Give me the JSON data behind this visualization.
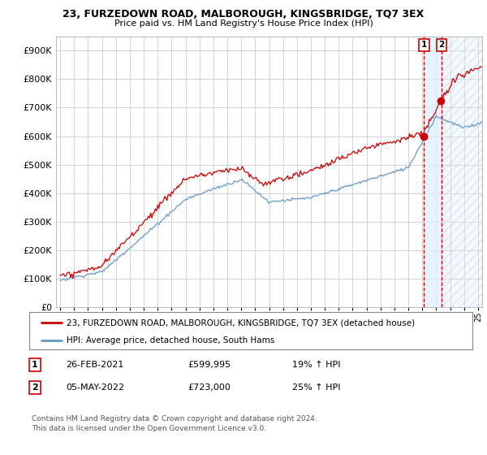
{
  "title": "23, FURZEDOWN ROAD, MALBOROUGH, KINGSBRIDGE, TQ7 3EX",
  "subtitle": "Price paid vs. HM Land Registry's House Price Index (HPI)",
  "ytick_values": [
    0,
    100000,
    200000,
    300000,
    400000,
    500000,
    600000,
    700000,
    800000,
    900000
  ],
  "ylim": [
    0,
    950000
  ],
  "xlim_start": 1994.7,
  "xlim_end": 2025.3,
  "legend_line1": "23, FURZEDOWN ROAD, MALBOROUGH, KINGSBRIDGE, TQ7 3EX (detached house)",
  "legend_line2": "HPI: Average price, detached house, South Hams",
  "sale1_date": "26-FEB-2021",
  "sale1_price": "£599,995",
  "sale1_hpi": "19% ↑ HPI",
  "sale2_date": "05-MAY-2022",
  "sale2_price": "£723,000",
  "sale2_hpi": "25% ↑ HPI",
  "footer": "Contains HM Land Registry data © Crown copyright and database right 2024.\nThis data is licensed under the Open Government Licence v3.0.",
  "line1_color": "#cc0000",
  "line2_color": "#6699cc",
  "shade_color": "#ddeeff",
  "sale1_x": 2021.12,
  "sale2_x": 2022.37
}
